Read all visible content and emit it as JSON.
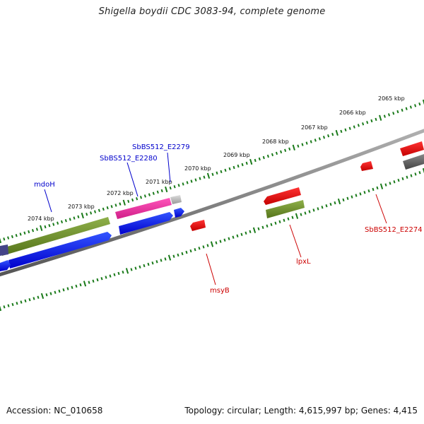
{
  "title": "Shigella boydii CDC 3083-94, complete genome",
  "footer": {
    "accession": "Accession: NC_010658",
    "summary": "Topology: circular; Length: 4,615,997 bp; Genes: 4,415"
  },
  "ruler_labels": [
    "2065 kbp",
    "2066 kbp",
    "2067 kbp",
    "2068 kbp",
    "2069 kbp",
    "2070 kbp",
    "2071 kbp",
    "2072 kbp",
    "2073 kbp",
    "2074 kbp"
  ],
  "gene_labels": [
    {
      "text": "SbBS512_E2279",
      "strand": "forward"
    },
    {
      "text": "SbBS512_E2280",
      "strand": "forward"
    },
    {
      "text": "mdoH",
      "strand": "forward"
    },
    {
      "text": "SbBS512_E2274",
      "strand": "reverse"
    },
    {
      "text": "lpxL",
      "strand": "reverse"
    },
    {
      "text": "msyB",
      "strand": "reverse"
    }
  ],
  "colors": {
    "forward_label": "#0000cc",
    "reverse_label": "#cc0000",
    "ruler_ticks": "#1a7a1a",
    "backbone": "#808080",
    "blue_feature": "#0000ee",
    "red_feature": "#ee0000",
    "olive_feature": "#6b8e23",
    "magenta_feature": "#e8289a",
    "gray_feature": "#aaaaaa",
    "dark_gray_feature": "#666666"
  }
}
